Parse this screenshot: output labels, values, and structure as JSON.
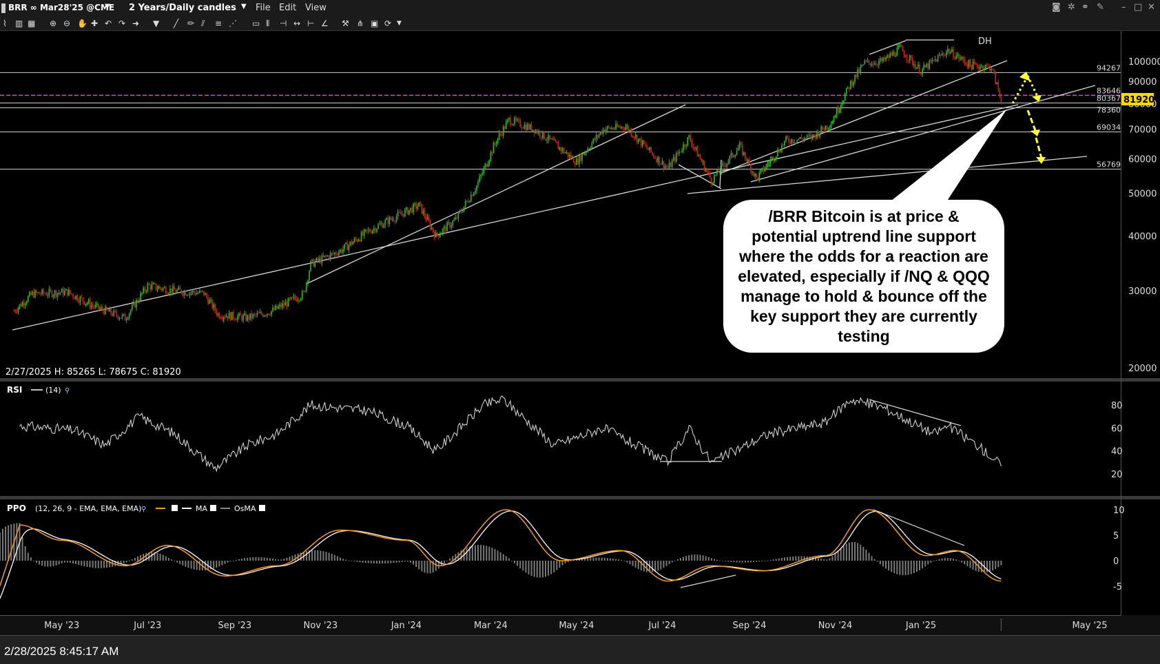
{
  "header": {
    "symbol": "BRR ∞ Mar28'25 @CME",
    "timeframe": "2 Years/Daily candles",
    "menu": [
      "File",
      "Edit",
      "View"
    ]
  },
  "status": {
    "timestamp": "2/28/2025 8:45:17 AM"
  },
  "callout": {
    "text": "/BRR Bitcoin is at price & potential uptrend line support where the odds for a reaction are elevated, especially if /NQ & QQQ manage to hold & bounce off the key support they are currently testing"
  },
  "colors": {
    "up": "#22c022",
    "down": "#d81e1e",
    "price_tag": "#ffd700",
    "dashed": "#e040e0",
    "arrow": "#ffff33",
    "ppo": "#f59a23",
    "ma": "#ffffff"
  },
  "chart_data": [
    {
      "type": "candlestick",
      "pane": "price",
      "scale": "log",
      "ohlc_label": "2/27/2025  H: 85265   L: 78675   C: 81920",
      "last_price": "81920",
      "y_ticks": [
        "100000",
        "90000",
        "80000",
        "70000",
        "60000",
        "50000",
        "40000",
        "30000",
        "20000"
      ],
      "levels": [
        {
          "label": "94267",
          "value": 94267
        },
        {
          "label": "83646",
          "value": 83646
        },
        {
          "label": "80367",
          "value": 80367
        },
        {
          "label": "78360",
          "value": 78360
        },
        {
          "label": "69034",
          "value": 69034
        },
        {
          "label": "56769",
          "value": 56769
        }
      ],
      "annotation": "DH",
      "x_ticks": [
        "May '23",
        "Jul '23",
        "Sep '23",
        "Nov '23",
        "Jan '24",
        "Mar '24",
        "May '24",
        "Jul '24",
        "Sep '24",
        "Nov '24",
        "Jan '25",
        "May '25"
      ],
      "series_points": [
        [
          "2023-03-28",
          27000
        ],
        [
          "2023-04-10",
          29500
        ],
        [
          "2023-05-05",
          29800
        ],
        [
          "2023-05-25",
          27500
        ],
        [
          "2023-06-15",
          26000
        ],
        [
          "2023-07-01",
          30800
        ],
        [
          "2023-07-20",
          30000
        ],
        [
          "2023-08-10",
          29600
        ],
        [
          "2023-08-20",
          26500
        ],
        [
          "2023-09-10",
          26000
        ],
        [
          "2023-09-28",
          27000
        ],
        [
          "2023-10-20",
          29500
        ],
        [
          "2023-10-25",
          34500
        ],
        [
          "2023-11-15",
          37000
        ],
        [
          "2023-12-05",
          41000
        ],
        [
          "2023-12-20",
          43500
        ],
        [
          "2024-01-10",
          47000
        ],
        [
          "2024-01-22",
          40000
        ],
        [
          "2024-02-05",
          43500
        ],
        [
          "2024-02-20",
          52000
        ],
        [
          "2024-03-05",
          66000
        ],
        [
          "2024-03-14",
          73500
        ],
        [
          "2024-04-01",
          70000
        ],
        [
          "2024-04-15",
          65000
        ],
        [
          "2024-05-01",
          59000
        ],
        [
          "2024-05-20",
          70000
        ],
        [
          "2024-06-05",
          71000
        ],
        [
          "2024-06-25",
          61000
        ],
        [
          "2024-07-05",
          57000
        ],
        [
          "2024-07-20",
          67000
        ],
        [
          "2024-08-05",
          53500
        ],
        [
          "2024-08-25",
          64000
        ],
        [
          "2024-09-06",
          54000
        ],
        [
          "2024-09-27",
          66000
        ],
        [
          "2024-10-15",
          67000
        ],
        [
          "2024-10-29",
          72500
        ],
        [
          "2024-11-12",
          89000
        ],
        [
          "2024-11-22",
          99000
        ],
        [
          "2024-12-05",
          100000
        ],
        [
          "2024-12-17",
          107000
        ],
        [
          "2025-01-01",
          95000
        ],
        [
          "2025-01-20",
          106000
        ],
        [
          "2025-02-05",
          98000
        ],
        [
          "2025-02-20",
          97000
        ],
        [
          "2025-02-27",
          81920
        ]
      ]
    },
    {
      "type": "line",
      "pane": "RSI",
      "title": "RSI",
      "params": "(14)",
      "y_ticks": [
        "80",
        "60",
        "40",
        "20"
      ],
      "series_points": [
        [
          "2023-04-01",
          62
        ],
        [
          "2023-05-10",
          58
        ],
        [
          "2023-06-01",
          45
        ],
        [
          "2023-06-25",
          70
        ],
        [
          "2023-07-20",
          55
        ],
        [
          "2023-08-18",
          25
        ],
        [
          "2023-09-10",
          45
        ],
        [
          "2023-10-01",
          55
        ],
        [
          "2023-10-25",
          80
        ],
        [
          "2023-12-05",
          75
        ],
        [
          "2024-01-01",
          62
        ],
        [
          "2024-01-22",
          40
        ],
        [
          "2024-02-25",
          80
        ],
        [
          "2024-03-10",
          85
        ],
        [
          "2024-04-15",
          45
        ],
        [
          "2024-05-20",
          60
        ],
        [
          "2024-07-05",
          30
        ],
        [
          "2024-07-20",
          60
        ],
        [
          "2024-08-05",
          30
        ],
        [
          "2024-09-15",
          55
        ],
        [
          "2024-10-25",
          65
        ],
        [
          "2024-11-12",
          85
        ],
        [
          "2024-12-05",
          78
        ],
        [
          "2025-01-10",
          55
        ],
        [
          "2025-01-20",
          62
        ],
        [
          "2025-02-10",
          45
        ],
        [
          "2025-02-27",
          28
        ]
      ]
    },
    {
      "type": "line",
      "pane": "PPO",
      "title": "PPO",
      "params": "(12, 26, 9 - EMA, EMA, EMA)",
      "legend": [
        "MA",
        "OsMA"
      ],
      "y_ticks": [
        "10",
        "5",
        "0",
        "-5"
      ],
      "series": [
        {
          "name": "PPO",
          "values": [
            [
              "2023-04-01",
              7
            ],
            [
              "2023-05-01",
              4
            ],
            [
              "2023-06-15",
              -1
            ],
            [
              "2023-07-15",
              3
            ],
            [
              "2023-08-25",
              -3
            ],
            [
              "2023-10-01",
              -1
            ],
            [
              "2023-11-15",
              6
            ],
            [
              "2024-01-01",
              4
            ],
            [
              "2024-01-25",
              -1
            ],
            [
              "2024-03-12",
              10
            ],
            [
              "2024-04-20",
              0
            ],
            [
              "2024-06-01",
              2
            ],
            [
              "2024-07-05",
              -4
            ],
            [
              "2024-08-05",
              -1
            ],
            [
              "2024-09-10",
              -2
            ],
            [
              "2024-10-25",
              1
            ],
            [
              "2024-11-25",
              10
            ],
            [
              "2025-01-05",
              1
            ],
            [
              "2025-01-25",
              2
            ],
            [
              "2025-02-27",
              -4
            ]
          ]
        }
      ]
    }
  ]
}
